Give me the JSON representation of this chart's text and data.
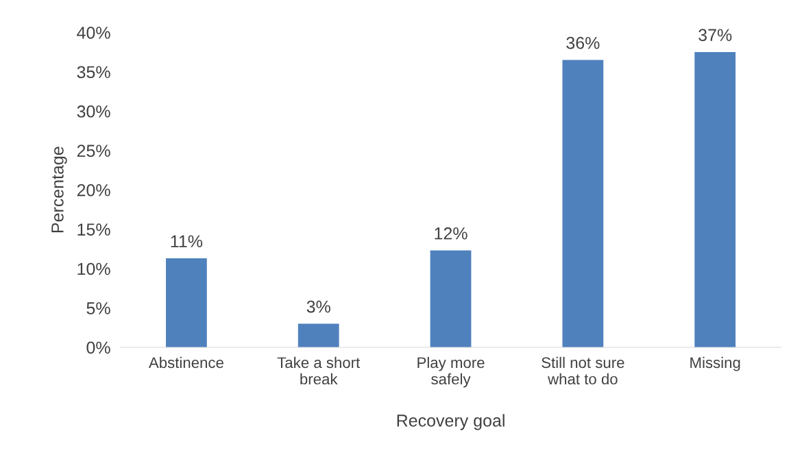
{
  "chart_data": {
    "type": "bar",
    "xlabel": "Recovery goal",
    "ylabel": "Percentage",
    "categories": [
      "Abstinence",
      "Take a short break",
      "Play more safely",
      "Still not sure what to do",
      "Missing"
    ],
    "values": [
      11.3,
      3.0,
      12.3,
      36.5,
      37.5
    ],
    "value_labels": [
      "11%",
      "3%",
      "12%",
      "36%",
      "37%"
    ],
    "color": "#4f81bd",
    "ylim": [
      0,
      40
    ],
    "yticks": [
      {
        "value": 0,
        "label": "0%"
      },
      {
        "value": 5,
        "label": "5%"
      },
      {
        "value": 10,
        "label": "10%"
      },
      {
        "value": 15,
        "label": "15%"
      },
      {
        "value": 20,
        "label": "20%"
      },
      {
        "value": 25,
        "label": "25%"
      },
      {
        "value": 30,
        "label": "30%"
      },
      {
        "value": 35,
        "label": "35%"
      },
      {
        "value": 40,
        "label": "40%"
      }
    ],
    "grid": false,
    "legend": false
  }
}
